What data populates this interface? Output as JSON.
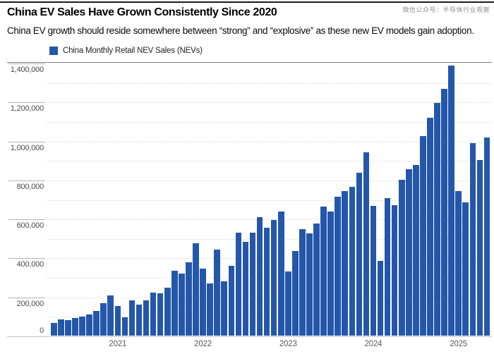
{
  "page": {
    "watermark": "微信公众号：半导体行业观察",
    "title": "China EV Sales Have Grown Consistently Since 2020",
    "subtitle": "China EV growth should reside somewhere between “strong” and “explosive” as these new EV models gain adoption."
  },
  "legend": {
    "label": "China Monthly Retail NEV Sales (NEVs)",
    "swatch_color": "#2457aa"
  },
  "chart_data": {
    "type": "bar",
    "title": "China EV Sales Have Grown Consistently Since 2020",
    "subtitle": "China EV growth should reside somewhere between “strong” and “explosive” as these new EV models gain adoption.",
    "series_name": "China Monthly Retail NEV Sales (NEVs)",
    "unit": "vehicles per month",
    "legend_position": "top-left",
    "grid": "horizontal dotted every 100,000",
    "bar_color": "#2457aa",
    "months": [
      "Apr 2020",
      "May 2020",
      "Jun 2020",
      "Jul 2020",
      "Aug 2020",
      "Sep 2020",
      "Oct 2020",
      "Nov 2020",
      "Dec 2020",
      "Jan 2021",
      "Feb 2021",
      "Mar 2021",
      "Apr 2021",
      "May 2021",
      "Jun 2021",
      "Jul 2021",
      "Aug 2021",
      "Sep 2021",
      "Oct 2021",
      "Nov 2021",
      "Dec 2021",
      "Jan 2022",
      "Feb 2022",
      "Mar 2022",
      "Apr 2022",
      "May 2022",
      "Jun 2022",
      "Jul 2022",
      "Aug 2022",
      "Sep 2022",
      "Oct 2022",
      "Nov 2022",
      "Dec 2022",
      "Jan 2023",
      "Feb 2023",
      "Mar 2023",
      "Apr 2023",
      "May 2023",
      "Jun 2023",
      "Jul 2023",
      "Aug 2023",
      "Sep 2023",
      "Oct 2023",
      "Nov 2023",
      "Dec 2023",
      "Jan 2024",
      "Feb 2024",
      "Mar 2024",
      "Apr 2024",
      "May 2024",
      "Jun 2024",
      "Jul 2024",
      "Aug 2024",
      "Sep 2024",
      "Oct 2024",
      "Nov 2024",
      "Dec 2024",
      "Jan 2025",
      "Feb 2025",
      "Mar 2025",
      "Apr 2025",
      "May 2025"
    ],
    "values": [
      67000,
      86000,
      83000,
      94000,
      103000,
      111000,
      129000,
      170000,
      209000,
      156000,
      99000,
      186000,
      163000,
      186000,
      223000,
      222000,
      250000,
      335000,
      321000,
      380000,
      478000,
      347000,
      272000,
      445000,
      282000,
      360000,
      532000,
      486000,
      530000,
      611000,
      556000,
      598000,
      640000,
      332000,
      439000,
      549000,
      527000,
      580000,
      665000,
      641000,
      716000,
      746000,
      767000,
      841000,
      945000,
      668000,
      388000,
      709000,
      674000,
      804000,
      856000,
      878000,
      1027000,
      1123000,
      1196000,
      1268000,
      1390000,
      744000,
      686000,
      991000,
      905000,
      1021000
    ],
    "year_tick_labels": [
      "2021",
      "2022",
      "2023",
      "2024",
      "2025"
    ],
    "year_jan_indices": [
      9,
      21,
      33,
      45,
      57
    ],
    "y_axis": {
      "min": 0,
      "max": 1400000,
      "major_tick_step": 200000,
      "minor_grid_step": 100000,
      "tick_labels": [
        "0",
        "200,000",
        "400,000",
        "600,000",
        "800,000",
        "1,000,000",
        "1,200,000",
        "1,400,000"
      ]
    }
  }
}
